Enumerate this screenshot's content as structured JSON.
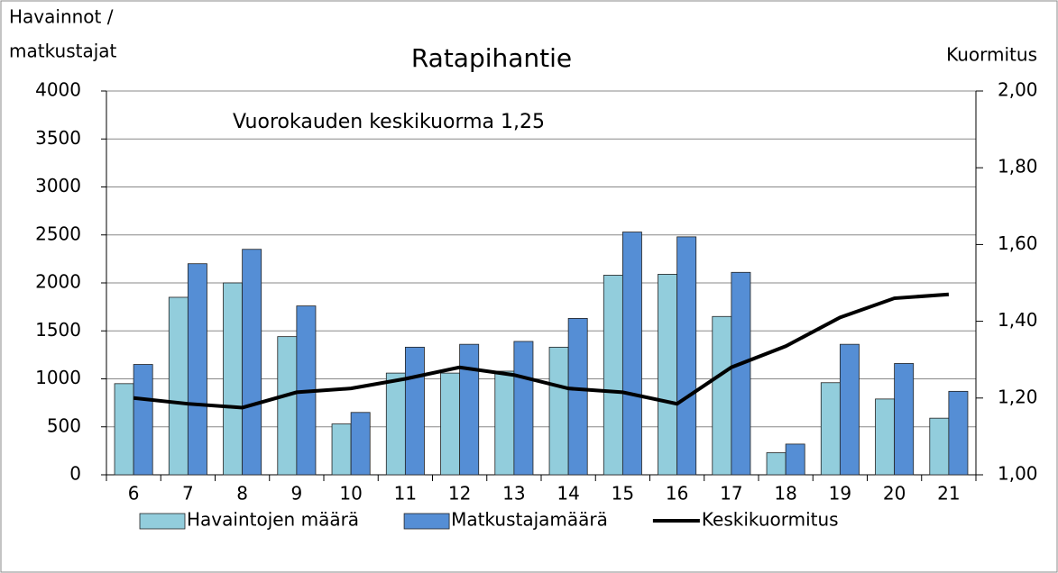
{
  "chart_data": {
    "type": "bar_line",
    "title": "Ratapihantie",
    "y_label_lines": [
      "Havainnot /",
      "matkustajat"
    ],
    "y2_label": "Kuormitus",
    "annotation": "Vuorokauden keskikuorma 1,25",
    "categories": [
      "6",
      "7",
      "8",
      "9",
      "10",
      "11",
      "12",
      "13",
      "14",
      "15",
      "16",
      "17",
      "18",
      "19",
      "20",
      "21"
    ],
    "series": [
      {
        "name": "Havaintojen määrä",
        "type": "bar",
        "color": "#92cddc",
        "values": [
          950,
          1850,
          2000,
          1440,
          530,
          1060,
          1060,
          1080,
          1330,
          2080,
          2090,
          1650,
          230,
          960,
          790,
          590
        ]
      },
      {
        "name": "Matkustajamäärä",
        "type": "bar",
        "color": "#558ed5",
        "values": [
          1150,
          2200,
          2350,
          1760,
          650,
          1330,
          1360,
          1390,
          1630,
          2530,
          2480,
          2110,
          320,
          1360,
          1160,
          870
        ]
      },
      {
        "name": "Keskikuormitus",
        "type": "line",
        "axis": "y2",
        "color": "#000000",
        "values": [
          1.2,
          1.185,
          1.175,
          1.215,
          1.225,
          1.25,
          1.28,
          1.26,
          1.225,
          1.215,
          1.185,
          1.28,
          1.335,
          1.41,
          1.46,
          1.47
        ]
      }
    ],
    "ylim": [
      0,
      4000
    ],
    "yticks": [
      0,
      500,
      1000,
      1500,
      2000,
      2500,
      3000,
      3500,
      4000
    ],
    "y2lim": [
      1,
      2
    ],
    "y2ticks": [
      {
        "value": 1,
        "label": "1,00"
      },
      {
        "value": 1.2,
        "label": "1,20"
      },
      {
        "value": 1.4,
        "label": "1,40"
      },
      {
        "value": 1.6,
        "label": "1,60"
      },
      {
        "value": 1.8,
        "label": "1,80"
      },
      {
        "value": 2,
        "label": "2,00"
      }
    ],
    "grid": true
  }
}
